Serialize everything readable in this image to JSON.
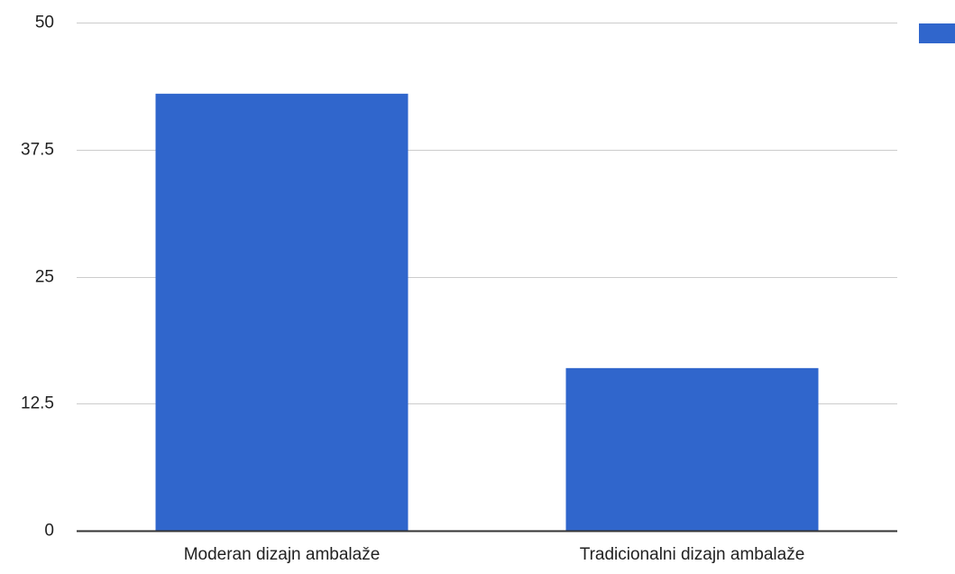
{
  "colors": {
    "bar": "#3066CC",
    "gridline": "#CCCCCC",
    "baseline": "#333333",
    "text": "#222222"
  },
  "chart_data": {
    "type": "bar",
    "categories": [
      "Moderan dizajn ambalaže",
      "Tradicionalni dizajn ambalaže"
    ],
    "series": [
      {
        "values": [
          43,
          16
        ]
      }
    ],
    "ylim": [
      0,
      50
    ],
    "yticks": [
      0,
      12.5,
      25,
      37.5,
      50
    ],
    "ytick_labels": [
      "0",
      "12.5",
      "25",
      "37.5",
      "50"
    ],
    "grid": true,
    "legend": "top-right",
    "title": "",
    "xlabel": "",
    "ylabel": ""
  }
}
